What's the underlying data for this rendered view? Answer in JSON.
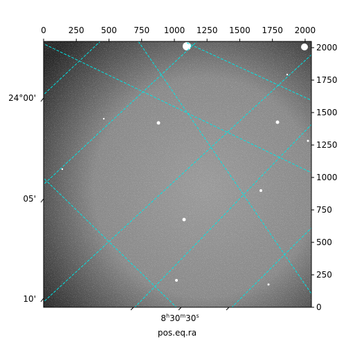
{
  "chart_data": {
    "type": "image",
    "xlabel": "pos.eq.ra",
    "xlim": [
      0,
      2048
    ],
    "xticks": [
      0,
      250,
      500,
      750,
      1000,
      1250,
      1500,
      1750,
      2000
    ],
    "ylim": [
      0,
      2048
    ],
    "yticks": [
      0,
      250,
      500,
      750,
      1000,
      1250,
      1500,
      1750,
      2000
    ],
    "world_y_ticks": [
      "24°00'",
      "05'",
      "10'"
    ],
    "world_x_tick_parts": [
      "8",
      "h",
      "30",
      "m",
      "30",
      "s"
    ],
    "grid_color": "#00e5e5"
  }
}
